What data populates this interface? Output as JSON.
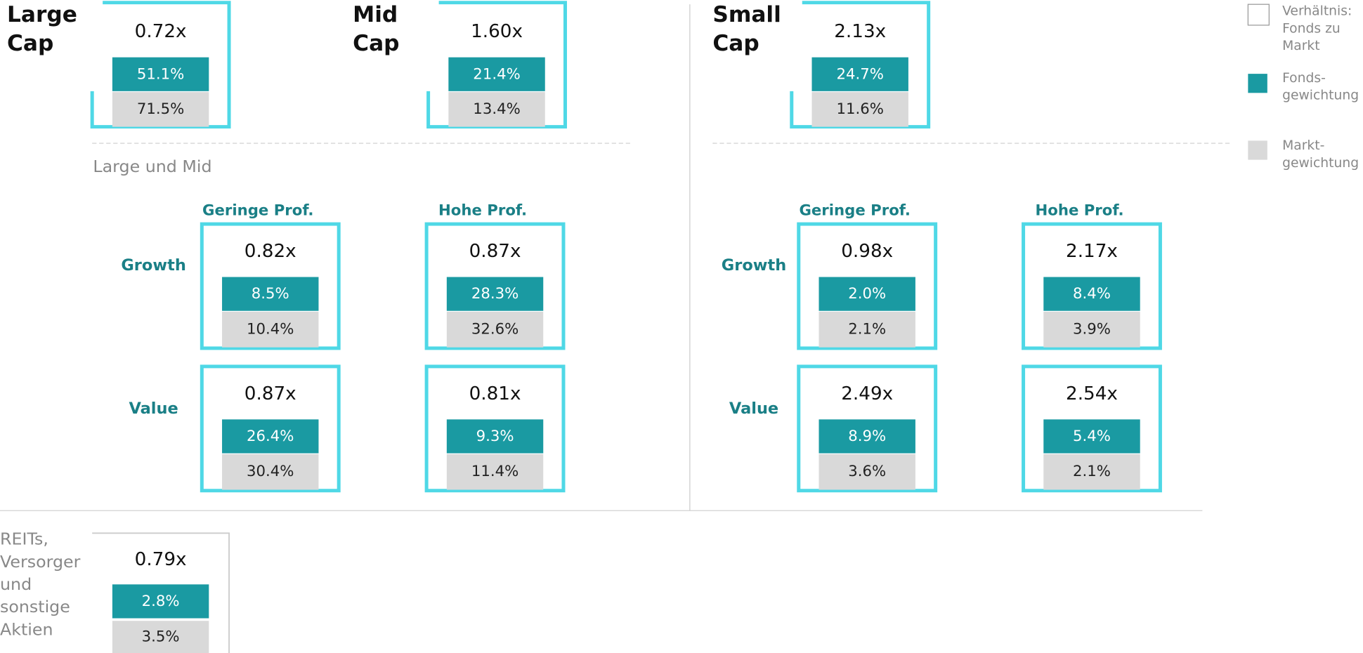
{
  "sections": [
    {
      "label": [
        "Large",
        "Cap"
      ],
      "ratio": "0.72x",
      "fund": "51.1%",
      "market": "71.5%"
    },
    {
      "label": [
        "Mid",
        "Cap"
      ],
      "ratio": "1.60x",
      "fund": "21.4%",
      "market": "13.4%"
    },
    {
      "label": [
        "Small",
        "Cap"
      ],
      "ratio": "2.13x",
      "fund": "24.7%",
      "market": "11.6%"
    }
  ],
  "subheading": "Large und Mid",
  "style_grids": [
    {
      "columns": [
        "Geringe Prof.",
        "Hohe Prof."
      ],
      "rows": [
        "Growth",
        "Value"
      ],
      "cells": [
        [
          {
            "ratio": "0.82x",
            "fund": "8.5%",
            "market": "10.4%"
          },
          {
            "ratio": "0.87x",
            "fund": "28.3%",
            "market": "32.6%"
          }
        ],
        [
          {
            "ratio": "0.87x",
            "fund": "26.4%",
            "market": "30.4%"
          },
          {
            "ratio": "0.81x",
            "fund": "9.3%",
            "market": "11.4%"
          }
        ]
      ]
    },
    {
      "columns": [
        "Geringe Prof.",
        "Hohe Prof."
      ],
      "rows": [
        "Growth",
        "Value"
      ],
      "cells": [
        [
          {
            "ratio": "0.98x",
            "fund": "2.0%",
            "market": "2.1%"
          },
          {
            "ratio": "2.17x",
            "fund": "8.4%",
            "market": "3.9%"
          }
        ],
        [
          {
            "ratio": "2.49x",
            "fund": "8.9%",
            "market": "3.6%"
          },
          {
            "ratio": "2.54x",
            "fund": "5.4%",
            "market": "2.1%"
          }
        ]
      ]
    }
  ],
  "other": {
    "label": [
      "REITs,",
      "Versorger",
      "und",
      "sonstige",
      "Aktien"
    ],
    "ratio": "0.79x",
    "fund": "2.8%",
    "market": "3.5%"
  },
  "legend": [
    {
      "label": [
        "Verhältnis:",
        "Fonds zu",
        "Markt"
      ]
    },
    {
      "label": [
        "Fonds-",
        "gewichtung"
      ]
    },
    {
      "label": [
        "Markt-",
        "gewichtung"
      ]
    }
  ]
}
